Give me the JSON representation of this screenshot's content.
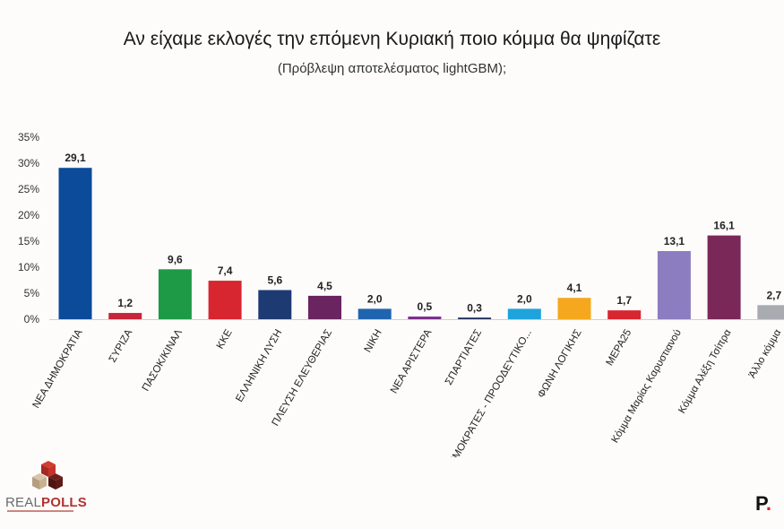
{
  "header": {
    "title": "Αν είχαμε εκλογές την επόμενη Κυριακή ποιο κόμμα θα ψηφίζατε",
    "subtitle": "(Πρόβλεψη αποτελέσματος lightGBM);"
  },
  "logos": {
    "left_part1": "REAL",
    "left_part2": "POLLS",
    "right": "P"
  },
  "chart_data": {
    "type": "bar",
    "title": "Αν είχαμε εκλογές την επόμενη Κυριακή ποιο κόμμα θα ψηφίζατε",
    "subtitle": "(Πρόβλεψη αποτελέσματος lightGBM);",
    "xlabel": "",
    "ylabel": "",
    "ylim": [
      0,
      35
    ],
    "yticks": [
      "0%",
      "5%",
      "10%",
      "15%",
      "20%",
      "25%",
      "30%",
      "35%"
    ],
    "grid": false,
    "categories": [
      "ΝΕΑ ΔΗΜΟΚΡΑΤΙΑ",
      "ΣΥΡΙΖΑ",
      "ΠΑΣΟΚ/ΚΙΝΑΛ",
      "ΚΚΕ",
      "ΕΛΛΗΝΙΚΗ ΛΥΣΗ",
      "ΠΛΕΥΣΗ ΕΛΕΥΘΕΡΙΑΣ",
      "ΝΙΚΗ",
      "ΝΕΑ ΑΡΙΣΤΕΡΑ",
      "ΣΠΑΡΤΙΑΤΕΣ",
      "ΔΗΜΟΚΡΑΤΕΣ - ΠΡΟΟΔΕΥΤΙΚΟ...",
      "ΦΩΝΗ ΛΟΓΙΚΗΣ",
      "ΜΕΡΑ25",
      "Κόμμα Μαρίας Καρυστιανού",
      "Κόμμα Αλέξη Τσίπρα",
      "Άλλο κόμμα"
    ],
    "values": [
      29.1,
      1.2,
      9.6,
      7.4,
      5.6,
      4.5,
      2.0,
      0.5,
      0.3,
      2.0,
      4.1,
      1.7,
      13.1,
      16.1,
      2.7
    ],
    "value_labels": [
      "29,1",
      "1,2",
      "9,6",
      "7,4",
      "5,6",
      "4,5",
      "2,0",
      "0,5",
      "0,3",
      "2,0",
      "4,1",
      "1,7",
      "13,1",
      "16,1",
      "2,7"
    ],
    "colors": [
      "#0c4a9a",
      "#c8243a",
      "#1e9a46",
      "#d7262f",
      "#1e3a73",
      "#6a2460",
      "#2064b0",
      "#7a2a8a",
      "#1a2a55",
      "#1ea3dc",
      "#f5a81e",
      "#d7262f",
      "#8c7cc0",
      "#7a2858",
      "#a8acb0"
    ]
  }
}
